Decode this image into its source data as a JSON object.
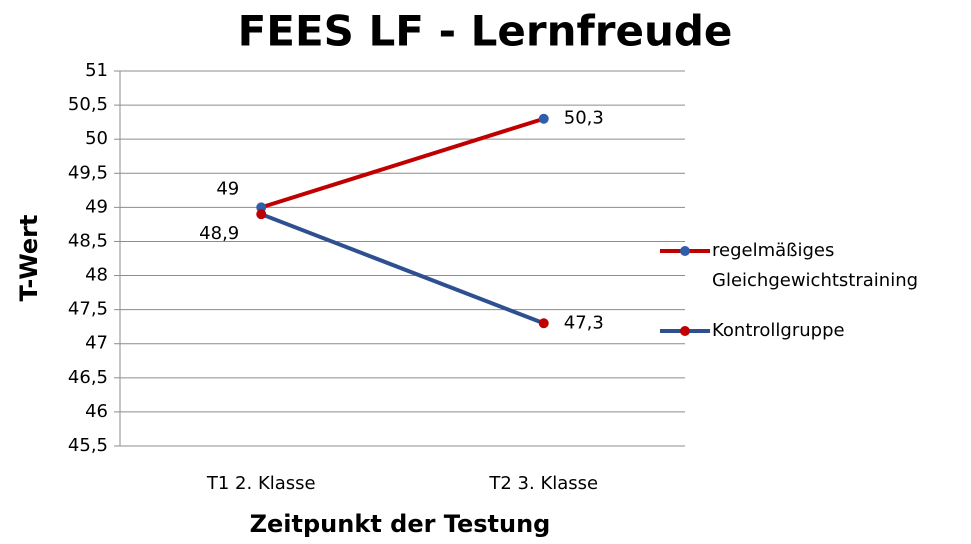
{
  "chart_data": {
    "type": "line",
    "title": "FEES LF - Lernfreude",
    "x_label": "Zeitpunkt der Testung",
    "y_label": "T-Wert",
    "categories": [
      "T1 2. Klasse",
      "T2 3. Klasse"
    ],
    "series": [
      {
        "name": "regelmäßiges Gleichgewichtstraining",
        "color": "#c00000",
        "marker_color": "#2e5fa8",
        "values": [
          49,
          50.3
        ],
        "value_labels": [
          "49",
          "50,3"
        ]
      },
      {
        "name": "Kontrollgruppe",
        "color": "#2e5090",
        "marker_color": "#c00000",
        "values": [
          48.9,
          47.3
        ],
        "value_labels": [
          "48,9",
          "47,3"
        ]
      }
    ],
    "ylim": [
      45.5,
      51
    ],
    "yticks": [
      {
        "value": 45.5,
        "label": "45,5"
      },
      46,
      {
        "value": 46.5,
        "label": "46,5"
      },
      47,
      {
        "value": 47.5,
        "label": "47,5"
      },
      48,
      {
        "value": 48.5,
        "label": "48,5"
      },
      49,
      {
        "value": 49.5,
        "label": "49,5"
      },
      50,
      {
        "value": 50.5,
        "label": "50,5"
      },
      51
    ],
    "grid": true,
    "legend": "right"
  }
}
